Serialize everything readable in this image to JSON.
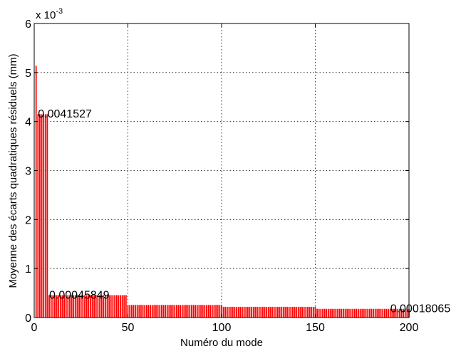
{
  "chart_data": {
    "type": "bar",
    "xlabel": "Numéro du mode",
    "ylabel": "Moyenne des écarts quadratiques résiduels (mm)",
    "y_multiplier": "x 10",
    "y_multiplier_exponent": "-3",
    "xlim": [
      0,
      200
    ],
    "ylim": [
      0,
      0.006
    ],
    "x_ticks": [
      0,
      50,
      100,
      150,
      200
    ],
    "x_tick_labels": [
      "0",
      "50",
      "100",
      "150",
      "200"
    ],
    "y_ticks": [
      0,
      0.001,
      0.002,
      0.003,
      0.004,
      0.005,
      0.006
    ],
    "y_tick_labels": [
      "0",
      "1",
      "2",
      "3",
      "4",
      "5",
      "6"
    ],
    "grid": true,
    "bar_color": "#ff0000",
    "segments": [
      {
        "from": 1,
        "to": 1,
        "value": 0.00514
      },
      {
        "from": 2,
        "to": 7,
        "value": 0.0041527
      },
      {
        "from": 8,
        "to": 49,
        "value": 0.00045849
      },
      {
        "from": 50,
        "to": 100,
        "value": 0.00026
      },
      {
        "from": 101,
        "to": 150,
        "value": 0.00022
      },
      {
        "from": 151,
        "to": 200,
        "value": 0.00018065
      }
    ],
    "annotations": [
      {
        "x": 2,
        "y": 0.0041527,
        "text": "0.0041527"
      },
      {
        "x": 8,
        "y": 0.00045849,
        "text": "0.00045849"
      },
      {
        "x": 190,
        "y": 0.00018065,
        "text": "0.00018065"
      }
    ]
  }
}
